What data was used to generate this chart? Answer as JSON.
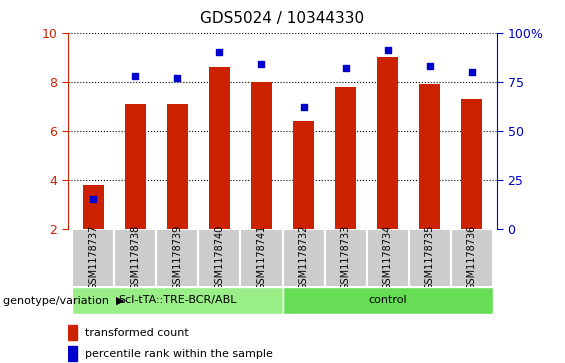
{
  "title": "GDS5024 / 10344330",
  "samples": [
    "GSM1178737",
    "GSM1178738",
    "GSM1178739",
    "GSM1178740",
    "GSM1178741",
    "GSM1178732",
    "GSM1178733",
    "GSM1178734",
    "GSM1178735",
    "GSM1178736"
  ],
  "bar_values": [
    3.8,
    7.1,
    7.1,
    8.6,
    8.0,
    6.4,
    7.8,
    9.0,
    7.9,
    7.3
  ],
  "dot_values_pct": [
    15,
    78,
    77,
    90,
    84,
    62,
    82,
    91,
    83,
    80
  ],
  "bar_color": "#cc2200",
  "dot_color": "#0000cc",
  "ylim_left": [
    2,
    10
  ],
  "ylim_right": [
    0,
    100
  ],
  "yticks_left": [
    2,
    4,
    6,
    8,
    10
  ],
  "yticks_right": [
    0,
    25,
    50,
    75,
    100
  ],
  "ytick_labels_right": [
    "0",
    "25",
    "50",
    "75",
    "100%"
  ],
  "groups": [
    {
      "label": "Scl-tTA::TRE-BCR/ABL",
      "start": 0,
      "end": 5,
      "color": "#99ee88"
    },
    {
      "label": "control",
      "start": 5,
      "end": 10,
      "color": "#66dd55"
    }
  ],
  "group_row_label": "genotype/variation",
  "legend_bar_label": "transformed count",
  "legend_dot_label": "percentile rank within the sample",
  "tick_color_left": "#cc2200",
  "tick_color_right": "#0000cc",
  "col_bg_color": "#cccccc"
}
